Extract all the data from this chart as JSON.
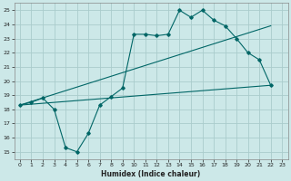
{
  "title": "",
  "xlabel": "Humidex (Indice chaleur)",
  "ylabel": "",
  "bg_color": "#cce8e8",
  "grid_color": "#aacccc",
  "line_color": "#006666",
  "xlim": [
    -0.5,
    23.5
  ],
  "ylim": [
    14.5,
    25.5
  ],
  "xticks": [
    0,
    1,
    2,
    3,
    4,
    5,
    6,
    7,
    8,
    9,
    10,
    11,
    12,
    13,
    14,
    15,
    16,
    17,
    18,
    19,
    20,
    21,
    22,
    23
  ],
  "yticks": [
    15,
    16,
    17,
    18,
    19,
    20,
    21,
    22,
    23,
    24,
    25
  ],
  "main_line": {
    "x": [
      0,
      1,
      2,
      3,
      4,
      5,
      6,
      7,
      8,
      9,
      10,
      11,
      12,
      13,
      14,
      15,
      16,
      17,
      18,
      19,
      20,
      21,
      22
    ],
    "y": [
      18.3,
      18.5,
      18.8,
      18.0,
      15.3,
      15.0,
      16.3,
      18.3,
      18.9,
      19.5,
      23.3,
      23.3,
      23.2,
      23.3,
      25.0,
      24.5,
      25.0,
      24.3,
      23.9,
      23.0,
      22.0,
      21.5,
      19.7
    ]
  },
  "upper_line": {
    "x": [
      0,
      22
    ],
    "y": [
      18.3,
      23.9
    ]
  },
  "lower_line": {
    "x": [
      0,
      22
    ],
    "y": [
      18.3,
      19.7
    ]
  }
}
